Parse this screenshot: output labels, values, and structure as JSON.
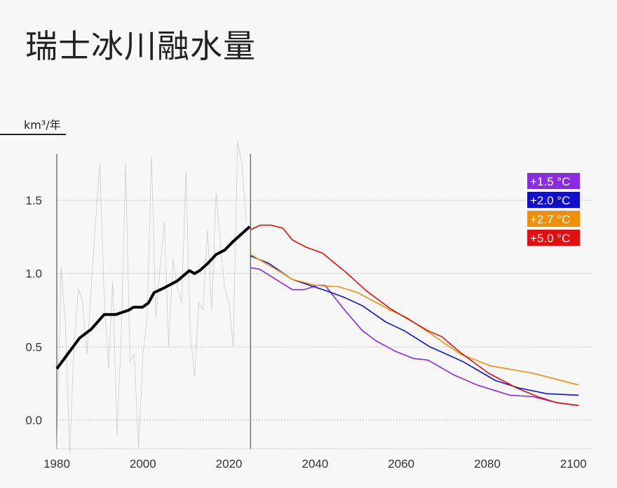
{
  "chart_data": {
    "type": "line",
    "title": "瑞士冰川融水量",
    "ylabel": "km³/年",
    "xlabel": "",
    "xlim": [
      1980,
      2104
    ],
    "ylim": [
      -0.2,
      1.82
    ],
    "grid": "horizontal dotted",
    "x_ticks": [
      "1980",
      "2000",
      "2020",
      "2040",
      "2060",
      "2080",
      "2100"
    ],
    "y_ticks": [
      "0.0",
      "0.5",
      "1.0",
      "1.5"
    ],
    "divider_year": 2025,
    "legend_placement": "top-right",
    "observed_annual": {
      "color": "#cccccc",
      "x": [
        1980,
        1981,
        1982,
        1983,
        1984,
        1985,
        1986,
        1987,
        1988,
        1989,
        1990,
        1991,
        1992,
        1993,
        1994,
        1995,
        1996,
        1997,
        1998,
        1999,
        2000,
        2001,
        2002,
        2003,
        2004,
        2005,
        2006,
        2007,
        2008,
        2009,
        2010,
        2011,
        2012,
        2013,
        2014,
        2015,
        2016,
        2017,
        2018,
        2019,
        2020,
        2021,
        2022,
        2023,
        2024
      ],
      "y": [
        -0.2,
        1.05,
        0.65,
        -0.22,
        0.5,
        0.9,
        0.8,
        0.45,
        0.9,
        1.35,
        1.75,
        0.85,
        0.35,
        0.95,
        -0.1,
        0.6,
        1.75,
        0.4,
        0.45,
        -0.2,
        0.45,
        0.7,
        1.8,
        0.7,
        1.05,
        1.35,
        0.5,
        1.1,
        0.9,
        0.8,
        1.7,
        0.6,
        0.3,
        0.8,
        0.75,
        1.3,
        0.75,
        1.55,
        1.2,
        0.9,
        0.8,
        0.5,
        1.9,
        1.75,
        1.35
      ]
    },
    "observed_trend": {
      "color": "#000000",
      "x": [
        1980,
        1985.3,
        1988,
        1991,
        1993.7,
        1996.7,
        1997.8,
        1999.9,
        2001.3,
        2002.6,
        2004.8,
        2008,
        2010.8,
        2012,
        2013.2,
        2015.1,
        2017,
        2019,
        2021,
        2024.8
      ],
      "y": [
        0.35,
        0.56,
        0.62,
        0.72,
        0.72,
        0.75,
        0.77,
        0.77,
        0.8,
        0.87,
        0.9,
        0.95,
        1.02,
        1.0,
        1.02,
        1.07,
        1.13,
        1.16,
        1.22,
        1.32
      ]
    },
    "series": [
      {
        "name": "+1.5 °C",
        "color": "#8a2be2",
        "x": [
          2025,
          2027.1,
          2034.7,
          2037.4,
          2040.6,
          2042.3,
          2046.6,
          2051,
          2054.2,
          2058.6,
          2062.9,
          2066.2,
          2072.1,
          2077.6,
          2085.2,
          2090.6,
          2096,
          2101
        ],
        "y": [
          1.04,
          1.03,
          0.89,
          0.89,
          0.92,
          0.92,
          0.76,
          0.61,
          0.54,
          0.47,
          0.42,
          0.41,
          0.31,
          0.24,
          0.17,
          0.16,
          0.12,
          0.1
        ]
      },
      {
        "name": "+2.0 °C",
        "color": "#1010c8",
        "x": [
          2025,
          2029.2,
          2034.7,
          2042.8,
          2046.6,
          2051,
          2056.4,
          2060.7,
          2066.7,
          2074.3,
          2081.9,
          2087.3,
          2093.8,
          2101.2
        ],
        "y": [
          1.12,
          1.07,
          0.96,
          0.88,
          0.84,
          0.78,
          0.67,
          0.61,
          0.5,
          0.4,
          0.27,
          0.22,
          0.18,
          0.17
        ]
      },
      {
        "name": "+2.7 °C",
        "color": "#f0900a",
        "x": [
          2025,
          2032,
          2034.7,
          2040.1,
          2045.5,
          2049.9,
          2057.5,
          2061.3,
          2073.8,
          2080.8,
          2090.6,
          2101.2
        ],
        "y": [
          1.13,
          1.01,
          0.96,
          0.92,
          0.91,
          0.87,
          0.75,
          0.7,
          0.45,
          0.37,
          0.32,
          0.24
        ]
      },
      {
        "name": "+5.0 °C",
        "color": "#e01010",
        "x": [
          2025,
          2027.3,
          2029.8,
          2032.5,
          2034.7,
          2037.9,
          2041.7,
          2047.1,
          2052,
          2057.5,
          2066.2,
          2069.4,
          2073.8,
          2080.3,
          2086.8,
          2091.7,
          2096,
          2101.2
        ],
        "y": [
          1.3,
          1.33,
          1.33,
          1.31,
          1.23,
          1.18,
          1.14,
          1.01,
          0.88,
          0.76,
          0.61,
          0.57,
          0.46,
          0.32,
          0.22,
          0.16,
          0.12,
          0.1
        ]
      }
    ]
  }
}
